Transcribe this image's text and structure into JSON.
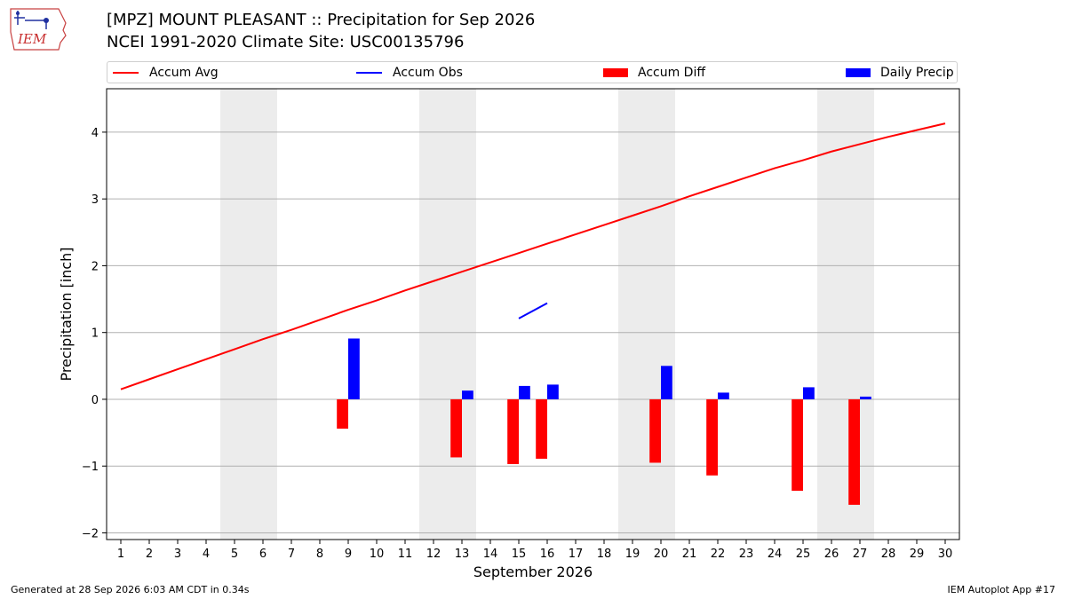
{
  "header": {
    "title_line1": "[MPZ] MOUNT PLEASANT :: Precipitation for Sep 2026",
    "title_line2": "NCEI 1991-2020 Climate Site: USC00135796",
    "logo_text": "IEM"
  },
  "footer": {
    "left": "Generated at 28 Sep 2026 6:03 AM CDT in 0.34s",
    "right": "IEM Autoplot App #17"
  },
  "chart_data": {
    "type": "bar",
    "xlabel": "September 2026",
    "ylabel": "Precipitation [inch]",
    "ylim": [
      -2.1,
      4.65
    ],
    "xlim": [
      0.5,
      30.5
    ],
    "yticks": [
      -2,
      -1,
      0,
      1,
      2,
      3,
      4
    ],
    "ytick_labels": [
      "−2",
      "−1",
      "0",
      "1",
      "2",
      "3",
      "4"
    ],
    "xticks": [
      1,
      2,
      3,
      4,
      5,
      6,
      7,
      8,
      9,
      10,
      11,
      12,
      13,
      14,
      15,
      16,
      17,
      18,
      19,
      20,
      21,
      22,
      23,
      24,
      25,
      26,
      27,
      28,
      29,
      30
    ],
    "grid": "horizontal",
    "legend_position": "top",
    "weekend_shading": [
      [
        4.5,
        6.5
      ],
      [
        11.5,
        13.5
      ],
      [
        18.5,
        20.5
      ],
      [
        25.5,
        27.5
      ]
    ],
    "series": [
      {
        "name": "Accum Avg",
        "kind": "line",
        "color": "#ff0000",
        "x": [
          1,
          2,
          3,
          4,
          5,
          6,
          7,
          8,
          9,
          10,
          11,
          12,
          13,
          14,
          15,
          16,
          17,
          18,
          19,
          20,
          21,
          22,
          23,
          24,
          25,
          26,
          27,
          28,
          29,
          30
        ],
        "values": [
          0.15,
          0.3,
          0.45,
          0.6,
          0.75,
          0.9,
          1.04,
          1.19,
          1.34,
          1.48,
          1.63,
          1.77,
          1.91,
          2.05,
          2.19,
          2.33,
          2.47,
          2.61,
          2.75,
          2.89,
          3.04,
          3.18,
          3.32,
          3.46,
          3.58,
          3.71,
          3.82,
          3.93,
          4.03,
          4.13
        ]
      },
      {
        "name": "Accum Obs",
        "kind": "line",
        "color": "#0000ff",
        "x": [
          15,
          16
        ],
        "values": [
          1.21,
          1.44
        ]
      },
      {
        "name": "Accum Diff",
        "kind": "bar",
        "color": "#ff0000",
        "x": [
          9,
          13,
          15,
          16,
          20,
          22,
          25,
          27
        ],
        "values": [
          -0.44,
          -0.87,
          -0.97,
          -0.89,
          -0.95,
          -1.14,
          -1.37,
          -1.58
        ]
      },
      {
        "name": "Daily Precip",
        "kind": "bar",
        "color": "#0000ff",
        "x": [
          9,
          13,
          15,
          16,
          20,
          22,
          25,
          27
        ],
        "values": [
          0.91,
          0.13,
          0.2,
          0.22,
          0.5,
          0.1,
          0.18,
          0.04
        ]
      }
    ]
  }
}
